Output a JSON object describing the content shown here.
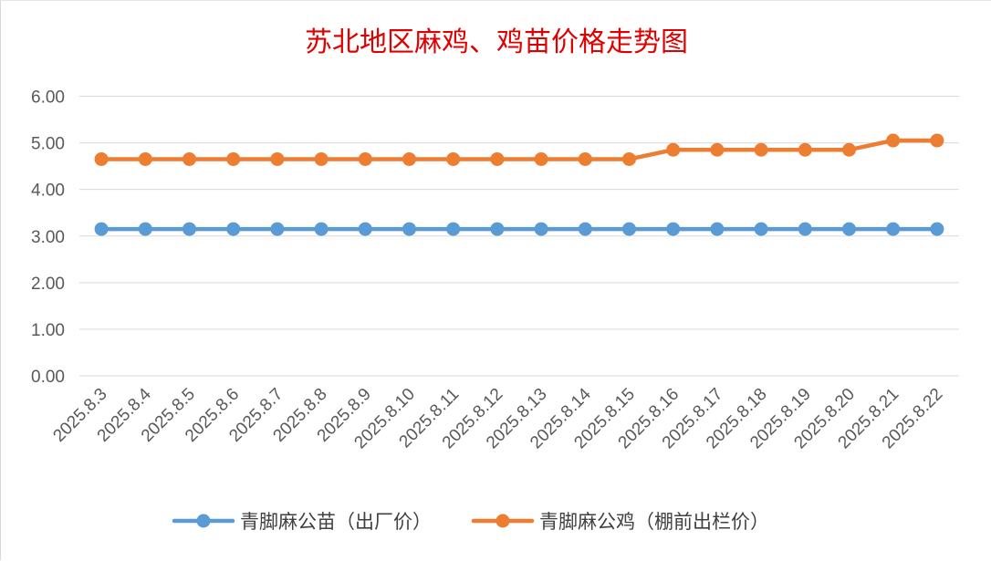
{
  "chart_data": {
    "type": "line",
    "title": "苏北地区麻鸡、鸡苗价格走势图",
    "title_color": "#e00000",
    "categories": [
      "2025.8.3",
      "2025.8.4",
      "2025.8.5",
      "2025.8.6",
      "2025.8.7",
      "2025.8.8",
      "2025.8.9",
      "2025.8.10",
      "2025.8.11",
      "2025.8.12",
      "2025.8.13",
      "2025.8.14",
      "2025.8.15",
      "2025.8.16",
      "2025.8.17",
      "2025.8.18",
      "2025.8.19",
      "2025.8.20",
      "2025.8.21",
      "2025.8.22"
    ],
    "series": [
      {
        "name": "青脚麻公苗（出厂价）",
        "color": "#5b9bd5",
        "values": [
          3.15,
          3.15,
          3.15,
          3.15,
          3.15,
          3.15,
          3.15,
          3.15,
          3.15,
          3.15,
          3.15,
          3.15,
          3.15,
          3.15,
          3.15,
          3.15,
          3.15,
          3.15,
          3.15,
          3.15
        ]
      },
      {
        "name": "青脚麻公鸡（棚前出栏价）",
        "color": "#ed7d31",
        "values": [
          4.65,
          4.65,
          4.65,
          4.65,
          4.65,
          4.65,
          4.65,
          4.65,
          4.65,
          4.65,
          4.65,
          4.65,
          4.65,
          4.85,
          4.85,
          4.85,
          4.85,
          4.85,
          5.05,
          5.05
        ]
      }
    ],
    "ylim": [
      0,
      6
    ],
    "yticks": [
      "0.00",
      "1.00",
      "2.00",
      "3.00",
      "4.00",
      "5.00",
      "6.00"
    ],
    "xlabel": "",
    "ylabel": "",
    "grid": true,
    "legend": "bottom"
  }
}
